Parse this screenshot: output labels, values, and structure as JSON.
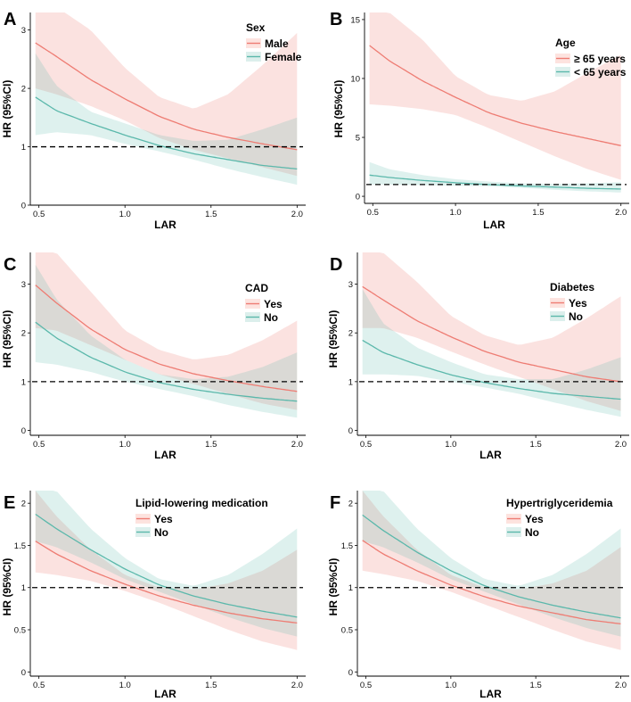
{
  "colors": {
    "red_line": "#ee7c73",
    "red_band": "#fde3df",
    "teal_line": "#5bb8ab",
    "teal_band": "#dcefec",
    "ref_line": "#000000"
  },
  "chart_data": [
    {
      "letter": "A",
      "type": "line",
      "xlabel": "LAR",
      "ylabel": "HR (95%CI)",
      "xlim": [
        0.45,
        2.05
      ],
      "ylim": [
        0,
        3.3
      ],
      "xticks": [
        0.5,
        1.0,
        1.5,
        2.0
      ],
      "xtick_labels": [
        "0.5",
        "1.0",
        "1.5",
        "2.0"
      ],
      "yticks": [
        0,
        1,
        2,
        3
      ],
      "ytick_labels": [
        "0",
        "1",
        "2",
        "3"
      ],
      "ref_y": 1,
      "legend_title": "Sex",
      "x": [
        0.48,
        0.6,
        0.8,
        1.0,
        1.2,
        1.4,
        1.6,
        1.8,
        2.0
      ],
      "series": [
        {
          "name": "Male",
          "color": "red",
          "values": [
            2.78,
            2.55,
            2.15,
            1.82,
            1.52,
            1.3,
            1.16,
            1.05,
            0.95
          ],
          "lower": [
            2.0,
            1.9,
            1.7,
            1.45,
            1.15,
            0.95,
            0.8,
            0.65,
            0.5
          ],
          "upper": [
            3.4,
            3.4,
            3.0,
            2.35,
            1.85,
            1.65,
            1.9,
            2.4,
            2.95
          ]
        },
        {
          "name": "Female",
          "color": "teal",
          "values": [
            1.85,
            1.62,
            1.4,
            1.2,
            1.02,
            0.88,
            0.78,
            0.68,
            0.62
          ],
          "lower": [
            1.2,
            1.25,
            1.2,
            1.05,
            0.92,
            0.78,
            0.62,
            0.48,
            0.35
          ],
          "upper": [
            2.6,
            2.05,
            1.6,
            1.4,
            1.2,
            1.1,
            1.12,
            1.3,
            1.5
          ]
        }
      ]
    },
    {
      "letter": "B",
      "type": "line",
      "xlabel": "LAR",
      "ylabel": "HR (95%CI)",
      "xlim": [
        0.45,
        2.05
      ],
      "ylim": [
        -0.6,
        15.6
      ],
      "xticks": [
        0.5,
        1.0,
        1.5,
        2.0
      ],
      "xtick_labels": [
        "0.5",
        "1.0",
        "1.5",
        "2.0"
      ],
      "yticks": [
        0,
        5,
        10,
        15
      ],
      "ytick_labels": [
        "0",
        "5",
        "10",
        "15"
      ],
      "ref_y": 1,
      "legend_title": "Age",
      "x": [
        0.48,
        0.6,
        0.8,
        1.0,
        1.2,
        1.4,
        1.6,
        1.8,
        2.0
      ],
      "series": [
        {
          "name": "≥ 65 years",
          "color": "red",
          "values": [
            12.8,
            11.5,
            9.8,
            8.4,
            7.1,
            6.2,
            5.5,
            4.9,
            4.3
          ],
          "lower": [
            7.8,
            7.7,
            7.4,
            6.9,
            5.8,
            4.6,
            3.4,
            2.3,
            1.4
          ],
          "upper": [
            15.6,
            15.6,
            13.3,
            10.2,
            8.6,
            8.1,
            8.9,
            10.5,
            12.0
          ]
        },
        {
          "name": "< 65 years",
          "color": "teal",
          "values": [
            1.8,
            1.6,
            1.35,
            1.15,
            1.0,
            0.88,
            0.78,
            0.68,
            0.62
          ],
          "lower": [
            1.0,
            1.0,
            0.95,
            0.9,
            0.85,
            0.72,
            0.55,
            0.42,
            0.32
          ],
          "upper": [
            2.9,
            2.3,
            1.8,
            1.45,
            1.25,
            1.1,
            1.05,
            1.1,
            1.2
          ]
        }
      ]
    },
    {
      "letter": "C",
      "type": "line",
      "xlabel": "LAR",
      "ylabel": "HR (95%CI)",
      "xlim": [
        0.45,
        2.05
      ],
      "ylim": [
        -0.1,
        3.65
      ],
      "xticks": [
        0.5,
        1.0,
        1.5,
        2.0
      ],
      "xtick_labels": [
        "0.5",
        "1.0",
        "1.5",
        "2.0"
      ],
      "yticks": [
        0,
        1,
        2,
        3
      ],
      "ytick_labels": [
        "0",
        "1",
        "2",
        "3"
      ],
      "ref_y": 1,
      "legend_title": "CAD",
      "x": [
        0.48,
        0.6,
        0.8,
        1.0,
        1.2,
        1.4,
        1.6,
        1.8,
        2.0
      ],
      "series": [
        {
          "name": "Yes",
          "color": "red",
          "values": [
            2.98,
            2.62,
            2.08,
            1.66,
            1.36,
            1.16,
            1.02,
            0.9,
            0.8
          ],
          "lower": [
            2.1,
            2.05,
            1.75,
            1.45,
            1.15,
            0.95,
            0.75,
            0.55,
            0.42
          ],
          "upper": [
            3.65,
            3.65,
            2.85,
            2.05,
            1.65,
            1.45,
            1.55,
            1.85,
            2.25
          ]
        },
        {
          "name": "No",
          "color": "teal",
          "values": [
            2.22,
            1.9,
            1.5,
            1.2,
            0.98,
            0.84,
            0.74,
            0.66,
            0.6
          ],
          "lower": [
            1.4,
            1.35,
            1.2,
            1.0,
            0.85,
            0.7,
            0.52,
            0.38,
            0.26
          ],
          "upper": [
            3.4,
            2.7,
            1.95,
            1.45,
            1.15,
            1.05,
            1.1,
            1.3,
            1.6
          ]
        }
      ]
    },
    {
      "letter": "D",
      "type": "line",
      "xlabel": "LAR",
      "ylabel": "HR (95%CI)",
      "xlim": [
        0.45,
        2.05
      ],
      "ylim": [
        -0.1,
        3.65
      ],
      "xticks": [
        0.5,
        1.0,
        1.5,
        2.0
      ],
      "xtick_labels": [
        "0.5",
        "1.0",
        "1.5",
        "2.0"
      ],
      "yticks": [
        0,
        1,
        2,
        3
      ],
      "ytick_labels": [
        "0",
        "1",
        "2",
        "3"
      ],
      "ref_y": 1,
      "legend_title": "Diabetes",
      "x": [
        0.48,
        0.6,
        0.8,
        1.0,
        1.2,
        1.4,
        1.6,
        1.8,
        2.0
      ],
      "series": [
        {
          "name": "Yes",
          "color": "red",
          "values": [
            2.95,
            2.68,
            2.25,
            1.92,
            1.62,
            1.4,
            1.25,
            1.1,
            1.0
          ],
          "lower": [
            2.1,
            2.1,
            1.9,
            1.62,
            1.35,
            1.1,
            0.85,
            0.6,
            0.4
          ],
          "upper": [
            3.65,
            3.65,
            3.05,
            2.35,
            1.95,
            1.75,
            1.9,
            2.3,
            2.75
          ]
        },
        {
          "name": "No",
          "color": "teal",
          "values": [
            1.85,
            1.6,
            1.35,
            1.14,
            0.98,
            0.86,
            0.76,
            0.7,
            0.64
          ],
          "lower": [
            1.15,
            1.15,
            1.12,
            1.0,
            0.88,
            0.75,
            0.58,
            0.42,
            0.28
          ],
          "upper": [
            2.9,
            2.2,
            1.7,
            1.4,
            1.15,
            1.05,
            1.05,
            1.25,
            1.5
          ]
        }
      ]
    },
    {
      "letter": "E",
      "type": "line",
      "xlabel": "LAR",
      "ylabel": "HR (95%CI)",
      "xlim": [
        0.45,
        2.05
      ],
      "ylim": [
        -0.05,
        2.15
      ],
      "xticks": [
        0.5,
        1.0,
        1.5,
        2.0
      ],
      "xtick_labels": [
        "0.5",
        "1.0",
        "1.5",
        "2.0"
      ],
      "yticks": [
        0,
        0.5,
        1,
        1.5,
        2
      ],
      "ytick_labels": [
        "0",
        "0.5",
        "1",
        "1.5",
        "2"
      ],
      "ref_y": 1,
      "legend_title": "Lipid-lowering medication",
      "x": [
        0.48,
        0.6,
        0.8,
        1.0,
        1.2,
        1.4,
        1.6,
        1.8,
        2.0
      ],
      "series": [
        {
          "name": "Yes",
          "color": "red",
          "values": [
            1.55,
            1.4,
            1.2,
            1.04,
            0.9,
            0.79,
            0.7,
            0.63,
            0.58
          ],
          "lower": [
            1.18,
            1.15,
            1.08,
            0.96,
            0.82,
            0.66,
            0.5,
            0.36,
            0.26
          ],
          "upper": [
            2.15,
            1.85,
            1.45,
            1.15,
            1.0,
            0.98,
            1.05,
            1.2,
            1.45
          ]
        },
        {
          "name": "No",
          "color": "teal",
          "values": [
            1.87,
            1.7,
            1.45,
            1.22,
            1.03,
            0.9,
            0.8,
            0.72,
            0.65
          ],
          "lower": [
            1.55,
            1.48,
            1.3,
            1.1,
            0.95,
            0.8,
            0.65,
            0.52,
            0.42
          ],
          "upper": [
            2.15,
            2.15,
            1.7,
            1.35,
            1.1,
            1.02,
            1.15,
            1.4,
            1.7
          ]
        }
      ]
    },
    {
      "letter": "F",
      "type": "line",
      "xlabel": "LAR",
      "ylabel": "HR (95%CI)",
      "xlim": [
        0.45,
        2.05
      ],
      "ylim": [
        -0.05,
        2.15
      ],
      "xticks": [
        0.5,
        1.0,
        1.5,
        2.0
      ],
      "xtick_labels": [
        "0.5",
        "1.0",
        "1.5",
        "2.0"
      ],
      "yticks": [
        0,
        0.5,
        1,
        1.5,
        2
      ],
      "ytick_labels": [
        "0",
        "0.5",
        "1",
        "1.5",
        "2"
      ],
      "ref_y": 1,
      "legend_title": "Hypertriglyceridemia",
      "x": [
        0.48,
        0.6,
        0.8,
        1.0,
        1.2,
        1.4,
        1.6,
        1.8,
        2.0
      ],
      "series": [
        {
          "name": "Yes",
          "color": "red",
          "values": [
            1.56,
            1.4,
            1.2,
            1.03,
            0.89,
            0.78,
            0.7,
            0.62,
            0.57
          ],
          "lower": [
            1.2,
            1.16,
            1.08,
            0.95,
            0.8,
            0.65,
            0.5,
            0.36,
            0.26
          ],
          "upper": [
            2.15,
            1.85,
            1.45,
            1.15,
            1.0,
            0.98,
            1.05,
            1.2,
            1.48
          ]
        },
        {
          "name": "No",
          "color": "teal",
          "values": [
            1.86,
            1.68,
            1.42,
            1.2,
            1.02,
            0.89,
            0.79,
            0.71,
            0.64
          ],
          "lower": [
            1.55,
            1.48,
            1.3,
            1.1,
            0.95,
            0.8,
            0.65,
            0.52,
            0.42
          ],
          "upper": [
            2.15,
            2.15,
            1.7,
            1.35,
            1.1,
            1.02,
            1.15,
            1.4,
            1.7
          ]
        }
      ]
    }
  ]
}
